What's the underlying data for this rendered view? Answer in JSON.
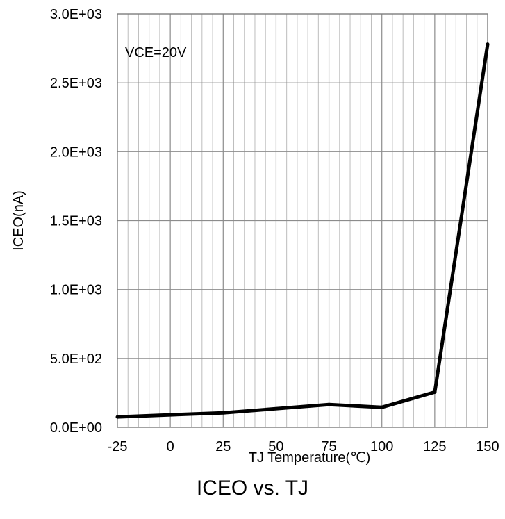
{
  "chart_data": {
    "type": "line",
    "title": "ICEO vs. TJ",
    "annotation": "VCE=20V",
    "xlabel": "TJ Temperature(℃)",
    "ylabel": "ICEO(nA)",
    "xlim": [
      -25,
      150
    ],
    "ylim": [
      0,
      3000
    ],
    "x_major_step": 25,
    "x_minor_step": 5,
    "y_major_step": 500,
    "grid": true,
    "x_tick_labels": [
      "-25",
      "0",
      "25",
      "50",
      "75",
      "100",
      "125",
      "150"
    ],
    "y_tick_labels": [
      "0.0E+00",
      "5.0E+02",
      "1.0E+03",
      "1.5E+03",
      "2.0E+03",
      "2.5E+03",
      "3.0E+03"
    ],
    "series": [
      {
        "color": "#000000",
        "x": [
          -25,
          25,
          75,
          100,
          125,
          150
        ],
        "y": [
          75,
          105,
          165,
          145,
          255,
          2780
        ]
      }
    ]
  }
}
